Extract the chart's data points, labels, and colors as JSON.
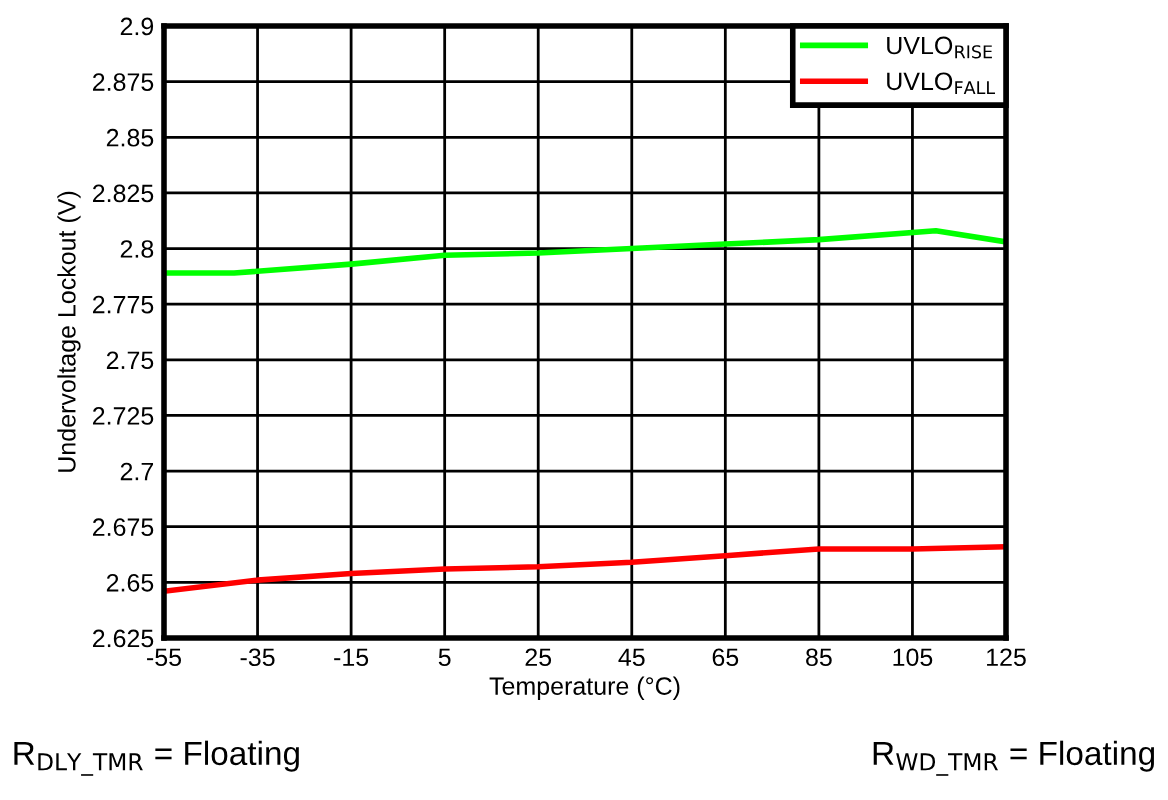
{
  "chart_data": {
    "type": "line",
    "xlabel": "Temperature (°C)",
    "ylabel": "Undervoltage Lockout (V)",
    "series": [
      {
        "name": "UVLO$_{RISE}$",
        "color": "#00ff00",
        "x": [
          -55,
          -40,
          -15,
          5,
          25,
          45,
          65,
          85,
          110,
          125
        ],
        "values": [
          2.789,
          2.789,
          2.793,
          2.797,
          2.798,
          2.8,
          2.802,
          2.804,
          2.808,
          2.803
        ]
      },
      {
        "name": "UVLO$_{FALL}$",
        "color": "#ff0000",
        "x": [
          -55,
          -35,
          -15,
          5,
          25,
          45,
          65,
          85,
          105,
          125
        ],
        "values": [
          2.646,
          2.651,
          2.654,
          2.656,
          2.657,
          2.659,
          2.662,
          2.665,
          2.665,
          2.666
        ]
      }
    ],
    "xlim": [
      -55,
      125
    ],
    "xticks": [
      -55,
      -35,
      -15,
      5,
      25,
      45,
      65,
      85,
      105,
      125
    ],
    "ylim": [
      2.625,
      2.9
    ],
    "yticks": [
      2.625,
      2.65,
      2.675,
      2.7,
      2.725,
      2.75,
      2.775,
      2.8,
      2.825,
      2.85,
      2.875,
      2.9
    ],
    "grid": true,
    "legend": "top right",
    "marker": "none",
    "line_style": "solid",
    "annotations": [
      "R$_{DLY_TMR}$ = Floating",
      "R$_{WD_TMR}$ = Floating"
    ]
  }
}
